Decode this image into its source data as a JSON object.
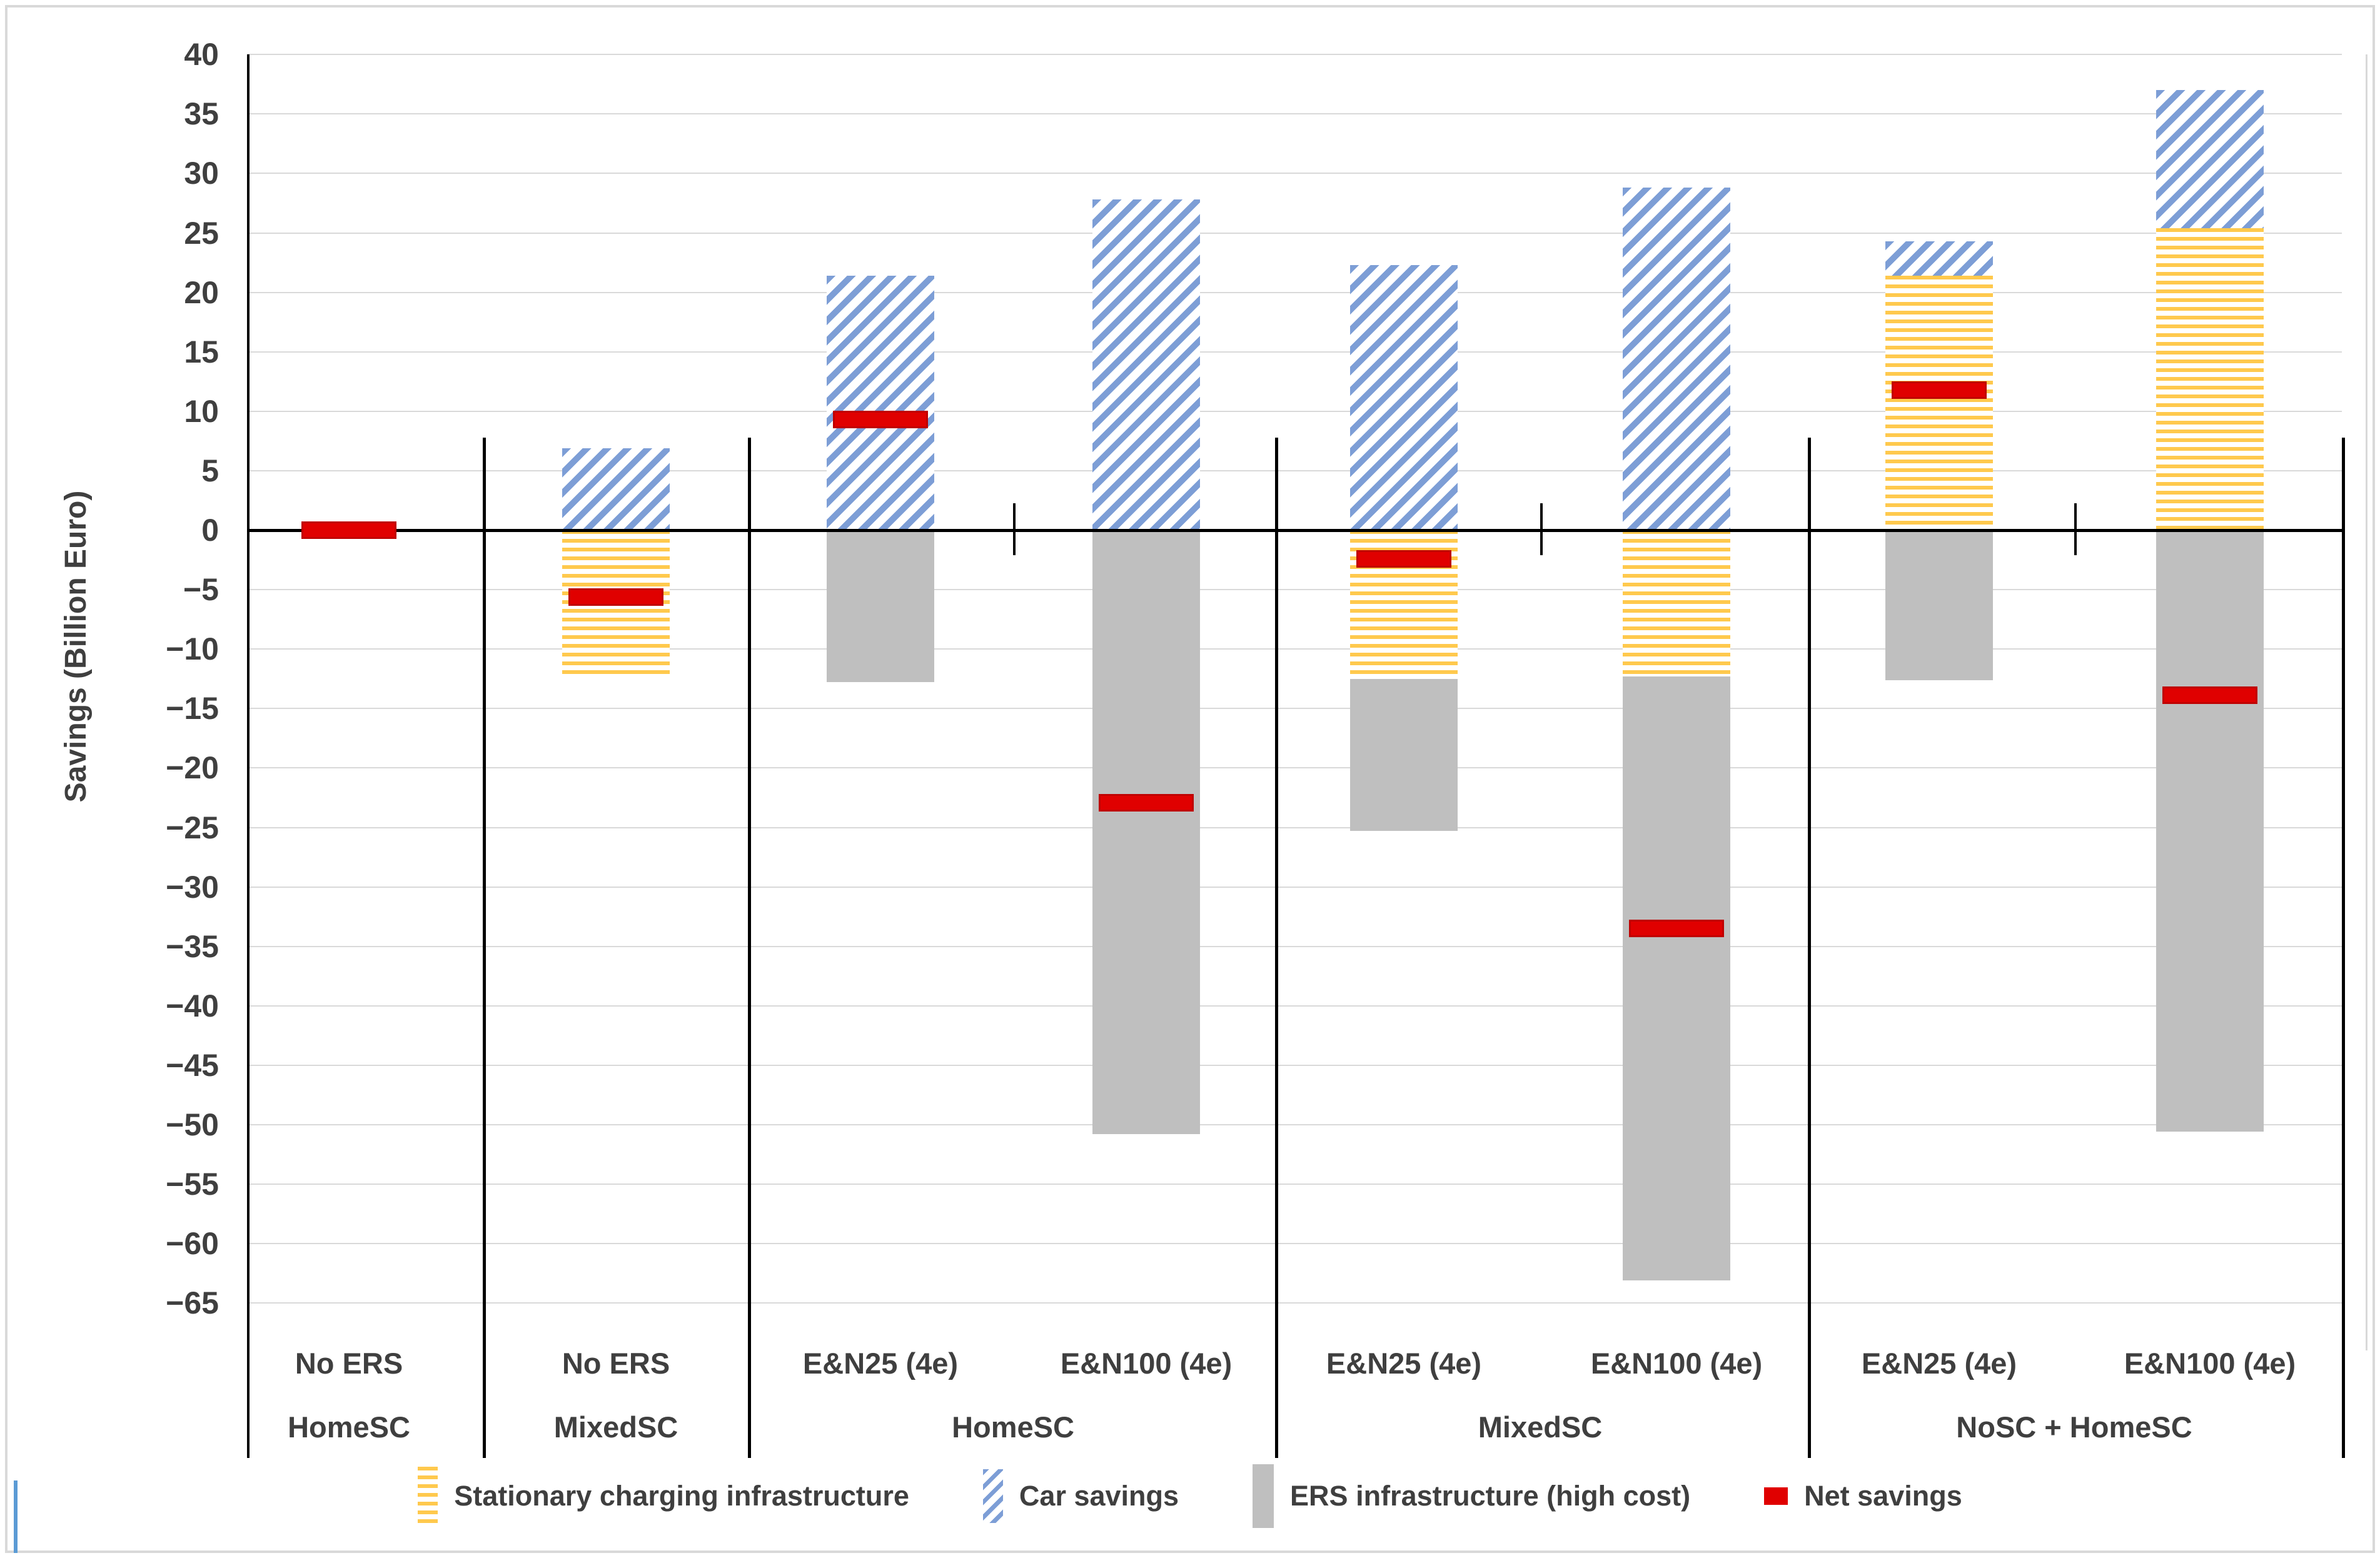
{
  "figure": {
    "type": "stacked-bar-chart-with-net-markers",
    "background": "#FFFFFF"
  },
  "y_axis": {
    "title": "Savings (Billion Euro)",
    "max": 40,
    "min": -65,
    "step": 5,
    "tick_values": [
      40,
      35,
      30,
      25,
      20,
      15,
      10,
      5,
      0,
      -5,
      -10,
      -15,
      -20,
      -25,
      -30,
      -35,
      -40,
      -45,
      -50,
      -55,
      -60,
      -65
    ],
    "tick_labels": [
      "40",
      "35",
      "30",
      "25",
      "20",
      "15",
      "10",
      "5",
      "0",
      "−5",
      "−10",
      "−15",
      "−20",
      "−25",
      "−30",
      "−35",
      "−40",
      "−45",
      "−50",
      "−55",
      "−60",
      "−65"
    ]
  },
  "x_axis": {
    "categories": [
      "No ERS",
      "No ERS",
      "E&N25 (4e)",
      "E&N100 (4e)",
      "E&N25 (4e)",
      "E&N100 (4e)",
      "E&N25 (4e)",
      "E&N100 (4e)"
    ],
    "groups": [
      {
        "label": "HomeSC",
        "bars": [
          0
        ]
      },
      {
        "label": "MixedSC",
        "bars": [
          1
        ]
      },
      {
        "label": "HomeSC",
        "bars": [
          2,
          3
        ]
      },
      {
        "label": "MixedSC",
        "bars": [
          4,
          5
        ]
      },
      {
        "label": "NoSC + HomeSC",
        "bars": [
          6,
          7
        ]
      }
    ]
  },
  "legend": [
    {
      "label": "Stationary charging infrastructure",
      "swatch": "yellow-horizontal-stripes"
    },
    {
      "label": "Car savings",
      "swatch": "blue-diagonal-stripes"
    },
    {
      "label": "ERS infrastructure (high cost)",
      "swatch": "gray-solid"
    },
    {
      "label": "Net savings",
      "swatch": "red-dash"
    }
  ],
  "colors": {
    "stationary": "#FFC94D",
    "car": "#7D9ED6",
    "ers": "#BFBFBF",
    "net": "#E00000",
    "gridline": "#D9D9D9",
    "axis": "#000000",
    "text": "#3F3F3F"
  },
  "chart_data": {
    "type": "bar",
    "stacked": true,
    "title": "",
    "xlabel": "",
    "ylabel": "Savings (Billion Euro)",
    "ylim": [
      -65,
      40
    ],
    "ytick_step": 5,
    "grid": true,
    "legend_position": "bottom",
    "categories": [
      "No ERS",
      "No ERS",
      "E&N25 (4e)",
      "E&N100 (4e)",
      "E&N25 (4e)",
      "E&N100 (4e)",
      "E&N25 (4e)",
      "E&N100 (4e)"
    ],
    "group_labels": [
      "HomeSC",
      "MixedSC",
      "HomeSC",
      "MixedSC",
      "NoSC + HomeSC"
    ],
    "series": [
      {
        "name": "Stationary charging infrastructure",
        "role": "stack",
        "values": [
          0,
          -12.3,
          0,
          0,
          -12.5,
          -12.3,
          21.4,
          25.4
        ]
      },
      {
        "name": "Car savings",
        "role": "stack",
        "values": [
          0,
          6.9,
          21.4,
          27.8,
          22.3,
          28.8,
          2.9,
          11.6
        ]
      },
      {
        "name": "ERS infrastructure (high cost)",
        "role": "stack",
        "values": [
          0,
          0,
          -12.8,
          -50.8,
          -12.8,
          -50.8,
          -12.6,
          -50.6
        ]
      },
      {
        "name": "Net savings",
        "role": "marker",
        "values": [
          0,
          -5.6,
          9.3,
          -22.9,
          -2.4,
          -33.5,
          11.8,
          -13.9
        ]
      }
    ]
  }
}
